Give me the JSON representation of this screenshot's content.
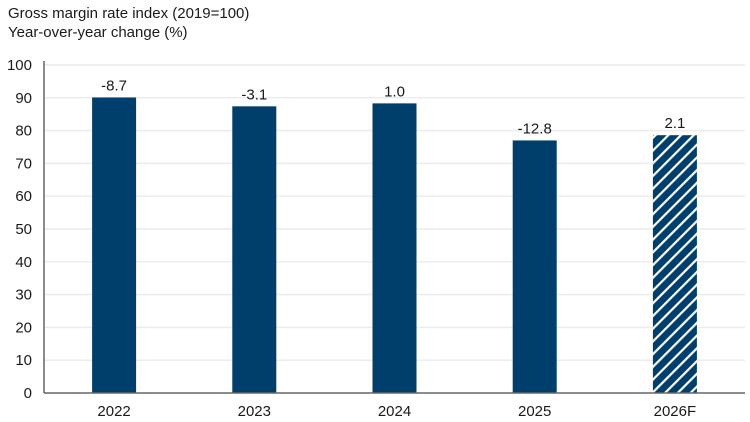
{
  "chart": {
    "title": "Gross margin rate index (2019=100)",
    "subtitle": "Year-over-year change (%)",
    "colors": {
      "bar": "#003f6b",
      "grid": "#ececec",
      "axis": "#666666",
      "hatch_stripe": "#ffffff"
    }
  },
  "chart_data": {
    "type": "bar",
    "title": "Gross margin rate index (2019=100)",
    "subtitle": "Year-over-year change (%)",
    "xlabel": "",
    "ylabel": "",
    "ylim": [
      0,
      100
    ],
    "yticks": [
      0,
      10,
      20,
      30,
      40,
      50,
      60,
      70,
      80,
      90,
      100
    ],
    "grid": true,
    "legend": null,
    "categories": [
      "2022",
      "2023",
      "2024",
      "2025",
      "2026F"
    ],
    "values": [
      90.1,
      87.4,
      88.3,
      77.0,
      78.6
    ],
    "data_labels": [
      "-8.7",
      "-3.1",
      "1.0",
      "-12.8",
      "2.1"
    ],
    "annotations": "Data labels show year-over-year change (%); 2026F is a forecast shown with diagonal hatching",
    "forecast_categories": [
      "2026F"
    ]
  }
}
